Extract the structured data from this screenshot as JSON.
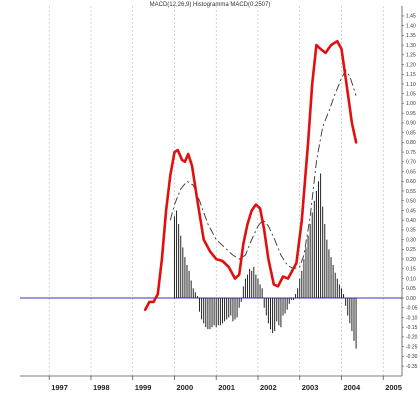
{
  "chart_data": {
    "type": "line",
    "title": "MACD(12,26,9) Histogramma MACD(0.2507)",
    "ylim": [
      -0.37,
      1.47
    ],
    "y_ticks": [
      1.45,
      1.4,
      1.35,
      1.3,
      1.25,
      1.2,
      1.15,
      1.1,
      1.05,
      1.0,
      0.95,
      0.9,
      0.85,
      0.8,
      0.75,
      0.7,
      0.65,
      0.6,
      0.55,
      0.5,
      0.45,
      0.4,
      0.35,
      0.3,
      0.25,
      0.2,
      0.15,
      0.1,
      0.05,
      0.0,
      -0.05,
      -0.1,
      -0.15,
      -0.2,
      -0.25,
      -0.3,
      -0.35
    ],
    "x_ticks": [
      {
        "label": "1997",
        "x": 1997.0
      },
      {
        "label": "1998",
        "x": 1998.0
      },
      {
        "label": "1999",
        "x": 1999.0
      },
      {
        "label": "2000",
        "x": 2000.0
      },
      {
        "label": "2001",
        "x": 2001.0
      },
      {
        "label": "2002",
        "x": 2002.0
      },
      {
        "label": "2003",
        "x": 2003.0
      },
      {
        "label": "2004",
        "x": 2004.0
      },
      {
        "label": "2005",
        "x": 2005.0
      }
    ],
    "xlim": [
      1996.3,
      2005.45
    ],
    "grid": true,
    "zero_line_color": "#3333cc",
    "macd": {
      "color": "#e01010",
      "points": [
        [
          1999.3,
          -0.06
        ],
        [
          1999.4,
          -0.02
        ],
        [
          1999.5,
          -0.02
        ],
        [
          1999.6,
          0.02
        ],
        [
          1999.7,
          0.2
        ],
        [
          1999.8,
          0.45
        ],
        [
          1999.9,
          0.63
        ],
        [
          2000.0,
          0.75
        ],
        [
          2000.08,
          0.76
        ],
        [
          2000.18,
          0.71
        ],
        [
          2000.25,
          0.7
        ],
        [
          2000.33,
          0.74
        ],
        [
          2000.42,
          0.68
        ],
        [
          2000.55,
          0.5
        ],
        [
          2000.7,
          0.3
        ],
        [
          2000.85,
          0.24
        ],
        [
          2001.0,
          0.2
        ],
        [
          2001.15,
          0.19
        ],
        [
          2001.3,
          0.16
        ],
        [
          2001.45,
          0.1
        ],
        [
          2001.55,
          0.12
        ],
        [
          2001.65,
          0.28
        ],
        [
          2001.75,
          0.38
        ],
        [
          2001.85,
          0.45
        ],
        [
          2001.95,
          0.48
        ],
        [
          2002.05,
          0.46
        ],
        [
          2002.15,
          0.35
        ],
        [
          2002.25,
          0.2
        ],
        [
          2002.38,
          0.07
        ],
        [
          2002.48,
          0.06
        ],
        [
          2002.6,
          0.11
        ],
        [
          2002.72,
          0.1
        ],
        [
          2002.82,
          0.14
        ],
        [
          2002.92,
          0.18
        ],
        [
          2003.05,
          0.4
        ],
        [
          2003.2,
          0.8
        ],
        [
          2003.3,
          1.1
        ],
        [
          2003.4,
          1.3
        ],
        [
          2003.5,
          1.28
        ],
        [
          2003.62,
          1.26
        ],
        [
          2003.75,
          1.3
        ],
        [
          2003.9,
          1.32
        ],
        [
          2004.0,
          1.28
        ],
        [
          2004.12,
          1.1
        ],
        [
          2004.25,
          0.9
        ],
        [
          2004.35,
          0.8
        ]
      ]
    },
    "signal": {
      "color": "#333333",
      "points": [
        [
          1999.9,
          0.4
        ],
        [
          2000.0,
          0.48
        ],
        [
          2000.15,
          0.56
        ],
        [
          2000.3,
          0.6
        ],
        [
          2000.45,
          0.58
        ],
        [
          2000.6,
          0.5
        ],
        [
          2000.8,
          0.38
        ],
        [
          2001.0,
          0.3
        ],
        [
          2001.2,
          0.26
        ],
        [
          2001.4,
          0.22
        ],
        [
          2001.55,
          0.2
        ],
        [
          2001.7,
          0.22
        ],
        [
          2001.85,
          0.3
        ],
        [
          2002.0,
          0.37
        ],
        [
          2002.12,
          0.4
        ],
        [
          2002.25,
          0.37
        ],
        [
          2002.4,
          0.3
        ],
        [
          2002.55,
          0.22
        ],
        [
          2002.7,
          0.17
        ],
        [
          2002.85,
          0.15
        ],
        [
          2003.0,
          0.16
        ],
        [
          2003.1,
          0.22
        ],
        [
          2003.25,
          0.42
        ],
        [
          2003.4,
          0.7
        ],
        [
          2003.55,
          0.88
        ],
        [
          2003.7,
          0.96
        ],
        [
          2003.85,
          1.05
        ],
        [
          2004.0,
          1.13
        ],
        [
          2004.1,
          1.17
        ],
        [
          2004.2,
          1.14
        ],
        [
          2004.35,
          1.04
        ]
      ]
    },
    "histogram": {
      "color": "#222222",
      "bars": [
        [
          2000.0,
          0.42
        ],
        [
          2000.05,
          0.45
        ],
        [
          2000.1,
          0.38
        ],
        [
          2000.15,
          0.32
        ],
        [
          2000.2,
          0.26
        ],
        [
          2000.25,
          0.21
        ],
        [
          2000.3,
          0.17
        ],
        [
          2000.35,
          0.14
        ],
        [
          2000.4,
          0.09
        ],
        [
          2000.45,
          0.05
        ],
        [
          2000.5,
          0.03
        ],
        [
          2000.55,
          0.01
        ],
        [
          2000.6,
          -0.07
        ],
        [
          2000.65,
          -0.11
        ],
        [
          2000.7,
          -0.13
        ],
        [
          2000.75,
          -0.15
        ],
        [
          2000.8,
          -0.16
        ],
        [
          2000.85,
          -0.16
        ],
        [
          2000.9,
          -0.15
        ],
        [
          2000.95,
          -0.14
        ],
        [
          2001.0,
          -0.15
        ],
        [
          2001.05,
          -0.14
        ],
        [
          2001.1,
          -0.14
        ],
        [
          2001.15,
          -0.13
        ],
        [
          2001.2,
          -0.12
        ],
        [
          2001.25,
          -0.11
        ],
        [
          2001.3,
          -0.1
        ],
        [
          2001.35,
          -0.09
        ],
        [
          2001.4,
          -0.12
        ],
        [
          2001.45,
          -0.11
        ],
        [
          2001.5,
          -0.1
        ],
        [
          2001.55,
          -0.05
        ],
        [
          2001.6,
          -0.02
        ],
        [
          2001.65,
          0.06
        ],
        [
          2001.7,
          0.1
        ],
        [
          2001.75,
          0.12
        ],
        [
          2001.8,
          0.15
        ],
        [
          2001.85,
          0.14
        ],
        [
          2001.9,
          0.16
        ],
        [
          2001.95,
          0.12
        ],
        [
          2002.0,
          0.1
        ],
        [
          2002.05,
          0.07
        ],
        [
          2002.1,
          0.05
        ],
        [
          2002.15,
          -0.05
        ],
        [
          2002.2,
          -0.09
        ],
        [
          2002.25,
          -0.13
        ],
        [
          2002.3,
          -0.16
        ],
        [
          2002.35,
          -0.18
        ],
        [
          2002.4,
          -0.17
        ],
        [
          2002.45,
          -0.12
        ],
        [
          2002.5,
          -0.14
        ],
        [
          2002.55,
          -0.15
        ],
        [
          2002.6,
          -0.09
        ],
        [
          2002.65,
          -0.08
        ],
        [
          2002.7,
          -0.06
        ],
        [
          2002.75,
          -0.03
        ],
        [
          2002.8,
          -0.01
        ],
        [
          2002.85,
          -0.01
        ],
        [
          2002.9,
          0.02
        ],
        [
          2002.95,
          0.05
        ],
        [
          2003.0,
          0.1
        ],
        [
          2003.05,
          0.14
        ],
        [
          2003.1,
          0.2
        ],
        [
          2003.15,
          0.26
        ],
        [
          2003.2,
          0.32
        ],
        [
          2003.25,
          0.38
        ],
        [
          2003.3,
          0.44
        ],
        [
          2003.35,
          0.5
        ],
        [
          2003.4,
          0.55
        ],
        [
          2003.45,
          0.6
        ],
        [
          2003.5,
          0.64
        ],
        [
          2003.55,
          0.47
        ],
        [
          2003.6,
          0.38
        ],
        [
          2003.65,
          0.3
        ],
        [
          2003.7,
          0.25
        ],
        [
          2003.75,
          0.21
        ],
        [
          2003.8,
          0.17
        ],
        [
          2003.85,
          0.13
        ],
        [
          2003.9,
          0.1
        ],
        [
          2003.95,
          0.07
        ],
        [
          2004.0,
          0.05
        ],
        [
          2004.05,
          0.02
        ],
        [
          2004.1,
          -0.04
        ],
        [
          2004.15,
          -0.09
        ],
        [
          2004.2,
          -0.13
        ],
        [
          2004.25,
          -0.17
        ],
        [
          2004.3,
          -0.22
        ],
        [
          2004.35,
          -0.26
        ]
      ]
    }
  }
}
